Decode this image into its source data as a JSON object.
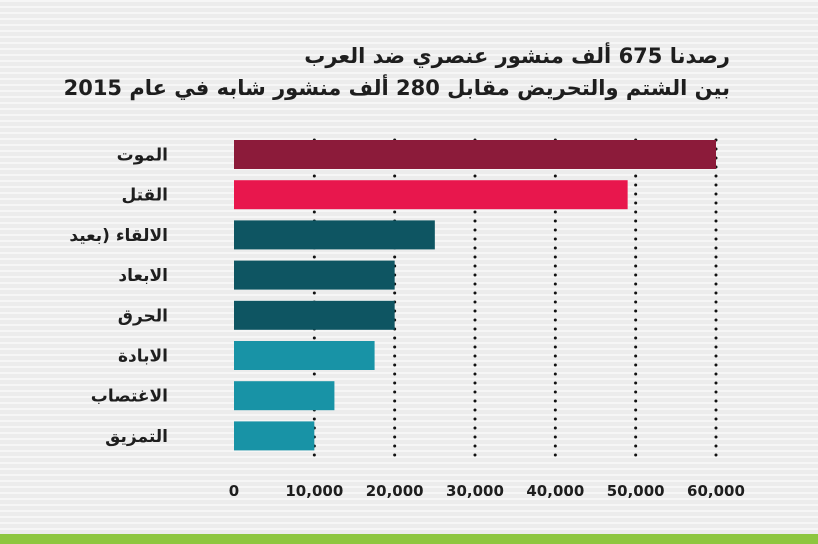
{
  "title_lines": [
    "رصدنا  675 ألف منشور عنصري ضد العرب",
    "بين  الشتم  والتحريض مقابل 280 ألف منشور شابه في عام 2015"
  ],
  "colors": {
    "background": "#ececec",
    "footer": "#8dc63f",
    "grid": "#111111"
  },
  "chart_data": {
    "type": "bar",
    "orientation": "horizontal",
    "categories": [
      "الموت",
      "القتل",
      "الالقاء (بعيد",
      "الابعاد",
      "الحرق",
      "الابادة",
      "الاغتصاب",
      "التمزيق"
    ],
    "values": [
      60000,
      49000,
      25000,
      20000,
      20000,
      17500,
      12500,
      10000
    ],
    "bar_colors": [
      "#8c1b3a",
      "#e8174d",
      "#0e5562",
      "#0e5562",
      "#0e5562",
      "#1893a6",
      "#1893a6",
      "#1893a6"
    ],
    "x_ticks": [
      0,
      10000,
      20000,
      30000,
      40000,
      50000,
      60000
    ],
    "x_tick_labels": [
      "0",
      "10,000",
      "20,000",
      "30,000",
      "40,000",
      "50,000",
      "60,000"
    ],
    "xlim": [
      0,
      60000
    ],
    "grid": "vertical dotted",
    "xlabel": "",
    "ylabel": ""
  }
}
